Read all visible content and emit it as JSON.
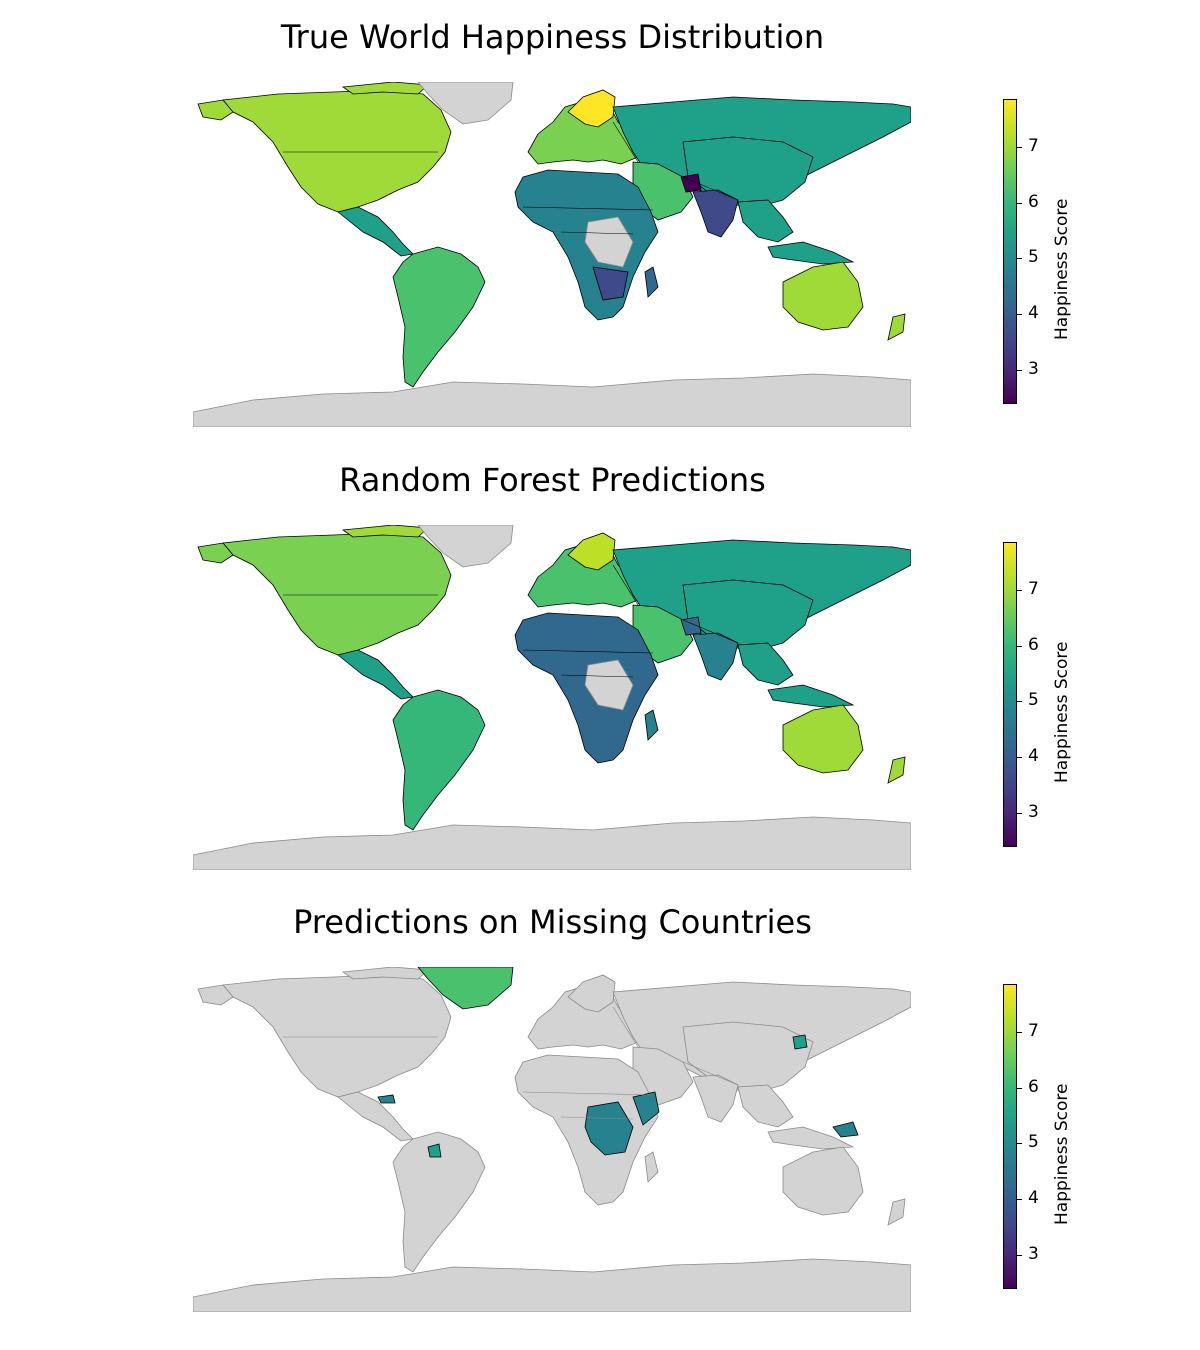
{
  "colorbar": {
    "label": "Happiness Score",
    "min": 2.4,
    "max": 7.85,
    "ticks": [
      "3",
      "4",
      "5",
      "6",
      "7"
    ],
    "colormap": "viridis"
  },
  "colors": {
    "missing": "#d3d3d3",
    "very_high": "#fde725",
    "high": "#bddf26",
    "upper": "#a0da39",
    "good": "#7ad151",
    "mid_high": "#4ac16d",
    "mid": "#35b779",
    "lower_mid": "#1fa088",
    "low_mid": "#26828e",
    "low": "#31688e",
    "very_low": "#3e4a89",
    "lowest": "#440154",
    "ocean": "#ffffff"
  },
  "panels": [
    {
      "title": "True World Happiness Distribution"
    },
    {
      "title": "Random Forest Predictions"
    },
    {
      "title": "Predictions on Missing Countries"
    }
  ]
}
